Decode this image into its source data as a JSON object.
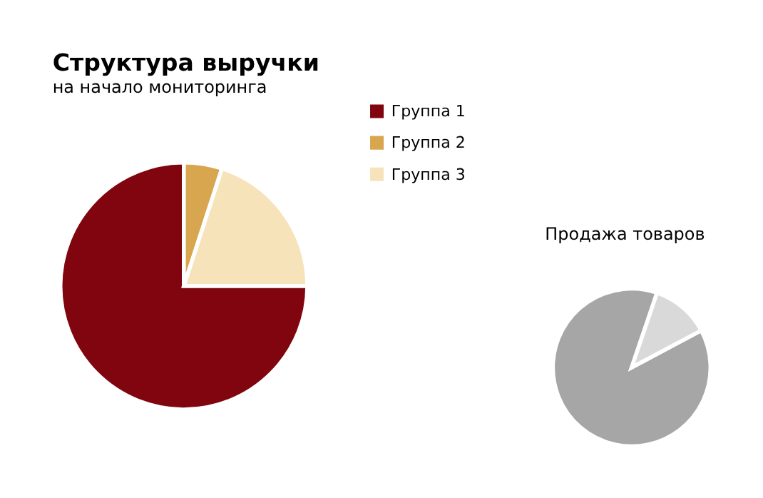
{
  "chart_data": [
    {
      "type": "pie",
      "title": "Структура выручки",
      "subtitle": "на начало мониторинга",
      "categories": [
        "Группа 1",
        "Группа 2",
        "Группа 3"
      ],
      "values": [
        75,
        5,
        20
      ],
      "colors": [
        "#80050f",
        "#d8a64f",
        "#f6e3b9"
      ],
      "legend": "top right"
    },
    {
      "type": "pie",
      "title": "Продажа товаров",
      "categories": [
        null,
        null
      ],
      "values": [
        88,
        12
      ],
      "colors": [
        "#a6a6a6",
        "#d9d9d9"
      ]
    }
  ]
}
